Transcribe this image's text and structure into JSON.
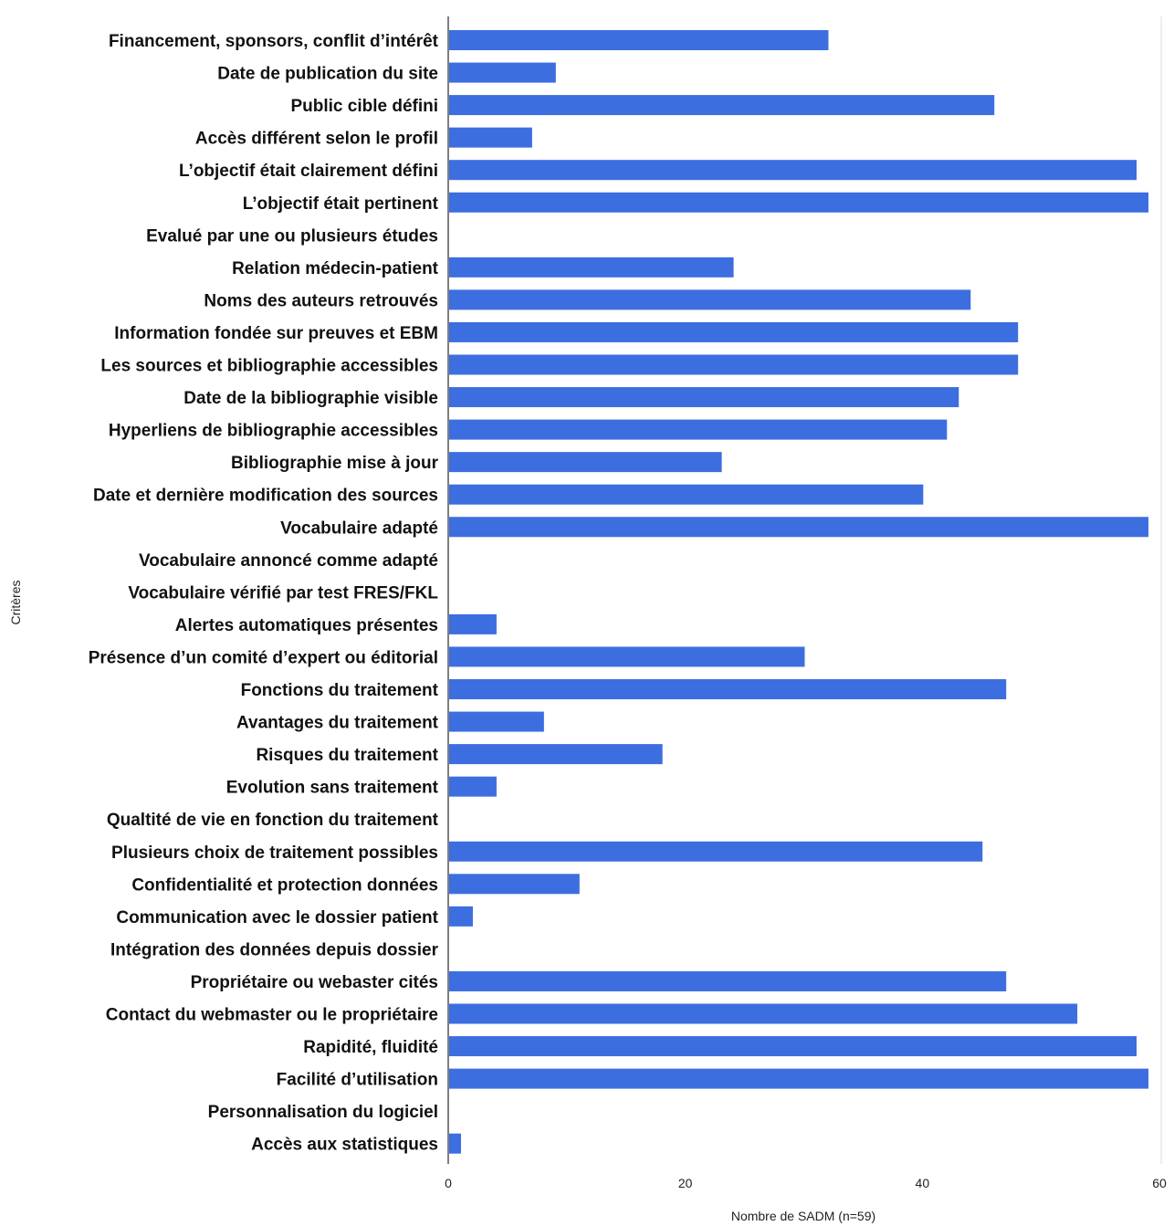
{
  "chart_data": {
    "type": "bar",
    "orientation": "horizontal",
    "categories": [
      "Financement, sponsors, conflit d’intérêt",
      "Date de publication du site",
      "Public cible défini",
      "Accès différent selon le profil",
      "L’objectif était clairement défini",
      "L’objectif était pertinent",
      "Evalué par une ou plusieurs études",
      "Relation médecin-patient",
      "Noms des auteurs retrouvés",
      "Information fondée sur preuves et EBM",
      "Les sources et bibliographie accessibles",
      "Date de la bibliographie visible",
      "Hyperliens de bibliographie accessibles",
      "Bibliographie mise à jour",
      "Date et dernière modification des sources",
      "Vocabulaire adapté",
      "Vocabulaire annoncé comme adapté",
      "Vocabulaire vérifié par test FRES/FKL",
      "Alertes automatiques présentes",
      "Présence d’un comité d’expert ou éditorial",
      "Fonctions du traitement",
      "Avantages du traitement",
      "Risques du traitement",
      "Evolution sans traitement",
      "Qualtité de vie en fonction du traitement",
      "Plusieurs choix de traitement possibles",
      "Confidentialité et protection données",
      "Communication avec le dossier patient",
      "Intégration  des données depuis dossier",
      "Propriétaire ou webaster cités",
      "Contact du webmaster ou le propriétaire",
      "Rapidité, fluidité",
      "Facilité d’utilisation",
      "Personnalisation du logiciel",
      "Accès aux statistiques"
    ],
    "values": [
      32,
      9,
      46,
      7,
      58,
      59,
      0,
      24,
      44,
      48,
      48,
      43,
      42,
      23,
      40,
      59,
      0,
      0,
      4,
      30,
      47,
      8,
      18,
      4,
      0,
      45,
      11,
      2,
      0,
      47,
      53,
      58,
      59,
      0,
      1
    ],
    "xlim": [
      0,
      60
    ],
    "xticks": [
      "0",
      "20",
      "40",
      "60"
    ],
    "xlabel": "Nombre de SADM (n=59)",
    "ylabel": "Critères",
    "grid": false,
    "bar_color": "#3d6ee0"
  }
}
